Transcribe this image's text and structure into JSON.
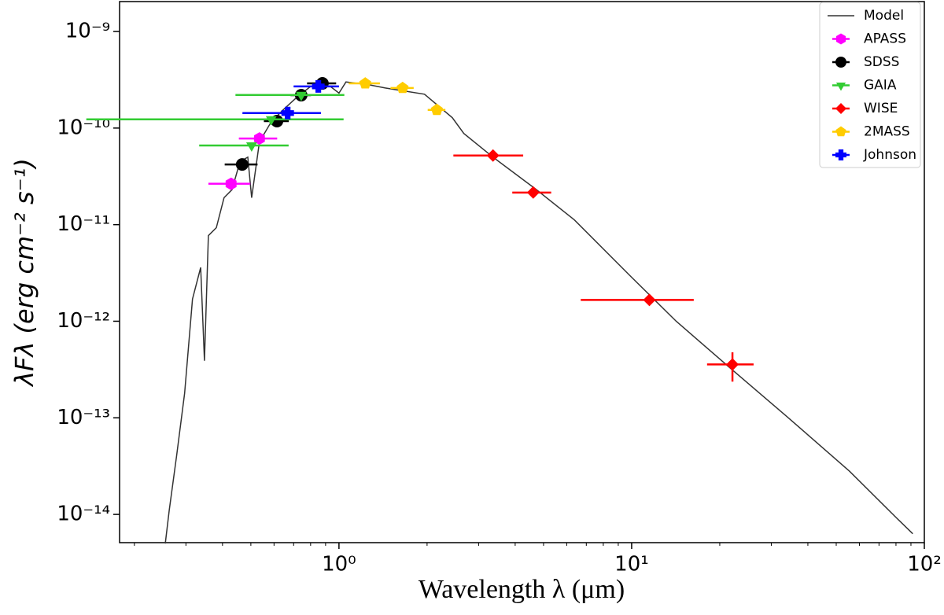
{
  "chart_data": {
    "type": "scatter",
    "xlabel": "Wavelength λ (μm)",
    "ylabel": "λFλ (erg cm⁻² s⁻¹)",
    "xscale": "log",
    "yscale": "log",
    "xlim": [
      0.178,
      100
    ],
    "ylim": [
      5.1e-15,
      2.04e-09
    ],
    "xticks": [
      {
        "value": 1,
        "label": "10⁰"
      },
      {
        "value": 10,
        "label": "10¹"
      },
      {
        "value": 100,
        "label": "10²"
      }
    ],
    "xminorticks": [
      0.2,
      0.3,
      0.4,
      0.5,
      0.6,
      0.7,
      0.8,
      0.9,
      2,
      3,
      4,
      5,
      6,
      7,
      8,
      9,
      20,
      30,
      40,
      50,
      60,
      70,
      80,
      90
    ],
    "yticks": [
      {
        "value": 1e-14,
        "label": "10⁻¹⁴"
      },
      {
        "value": 1e-13,
        "label": "10⁻¹³"
      },
      {
        "value": 1e-12,
        "label": "10⁻¹²"
      },
      {
        "value": 1e-11,
        "label": "10⁻¹¹"
      },
      {
        "value": 1e-10,
        "label": "10⁻¹⁰"
      },
      {
        "value": 1e-09,
        "label": "10⁻⁹"
      }
    ],
    "legend": "upper right",
    "model": {
      "name": "Model",
      "color": "#333333",
      "x": [
        0.255,
        0.263,
        0.279,
        0.297,
        0.316,
        0.337,
        0.347,
        0.358,
        0.381,
        0.405,
        0.431,
        0.459,
        0.488,
        0.503,
        0.535,
        0.587,
        0.644,
        0.707,
        0.8,
        0.934,
        1.0,
        1.057,
        1.27,
        1.44,
        1.96,
        2.44,
        2.67,
        3.36,
        4.67,
        6.37,
        9.83,
        14.2,
        21.9,
        33.8,
        55.5,
        80.6,
        91.3
      ],
      "y": [
        5e-15,
        1.1e-14,
        4.1e-14,
        1.8e-13,
        1.7e-12,
        3.6e-12,
        3.9e-13,
        7.7e-12,
        9.3e-12,
        1.9e-11,
        2.3e-11,
        4.5e-11,
        5e-11,
        1.9e-11,
        7.2e-11,
        1.16e-10,
        1.54e-10,
        2e-10,
        2.7e-10,
        2.7e-10,
        2.3e-10,
        3e-10,
        2.8e-10,
        2.6e-10,
        2.24e-10,
        1.28e-10,
        8.8e-11,
        5e-11,
        2.37e-11,
        1.12e-11,
        3e-12,
        1e-12,
        3.2e-13,
        1.04e-13,
        2.8e-14,
        9.1e-15,
        6.3e-15
      ]
    },
    "series": [
      {
        "name": "APASS",
        "color": "#ff00ff",
        "marker": "hexagon",
        "x": [
          0.428,
          0.535
        ],
        "y": [
          2.65e-11,
          7.8e-11
        ],
        "xerr": [
          0.07,
          0.08
        ]
      },
      {
        "name": "SDSS",
        "color": "#000000",
        "marker": "circle",
        "x": [
          0.467,
          0.614,
          0.743,
          0.878
        ],
        "y": [
          4.2e-11,
          1.18e-10,
          2.19e-10,
          2.9e-10
        ],
        "xerr": [
          0.06,
          0.06,
          0.06,
          0.1
        ]
      },
      {
        "name": "GAIA",
        "color": "#33cc33",
        "marker": "triangle-down",
        "x": [
          0.503,
          0.587,
          0.743
        ],
        "y": [
          6.6e-11,
          1.23e-10,
          2.2e-10
        ],
        "xerr": [
          0.17,
          0.45,
          0.3
        ]
      },
      {
        "name": "WISE",
        "color": "#ff0000",
        "marker": "diamond",
        "x": [
          3.36,
          4.61,
          11.5,
          22.1
        ],
        "y": [
          5.2e-11,
          2.15e-11,
          1.66e-12,
          3.57e-13
        ],
        "xerr": [
          0.9,
          0.7,
          4.8,
          4
        ],
        "yerr": [
          null,
          null,
          null,
          1.2e-13
        ]
      },
      {
        "name": "2MASS",
        "color": "#ffcc00",
        "marker": "pentagon",
        "x": [
          1.23,
          1.65,
          2.16
        ],
        "y": [
          2.9e-10,
          2.6e-10,
          1.54e-10
        ],
        "xerr": [
          0.15,
          0.15,
          0.15
        ]
      },
      {
        "name": "Johnson",
        "color": "#0000ff",
        "marker": "plus",
        "x": [
          0.668,
          0.85
        ],
        "y": [
          1.43e-10,
          2.7e-10
        ],
        "xerr": [
          0.2,
          0.15
        ]
      }
    ]
  }
}
